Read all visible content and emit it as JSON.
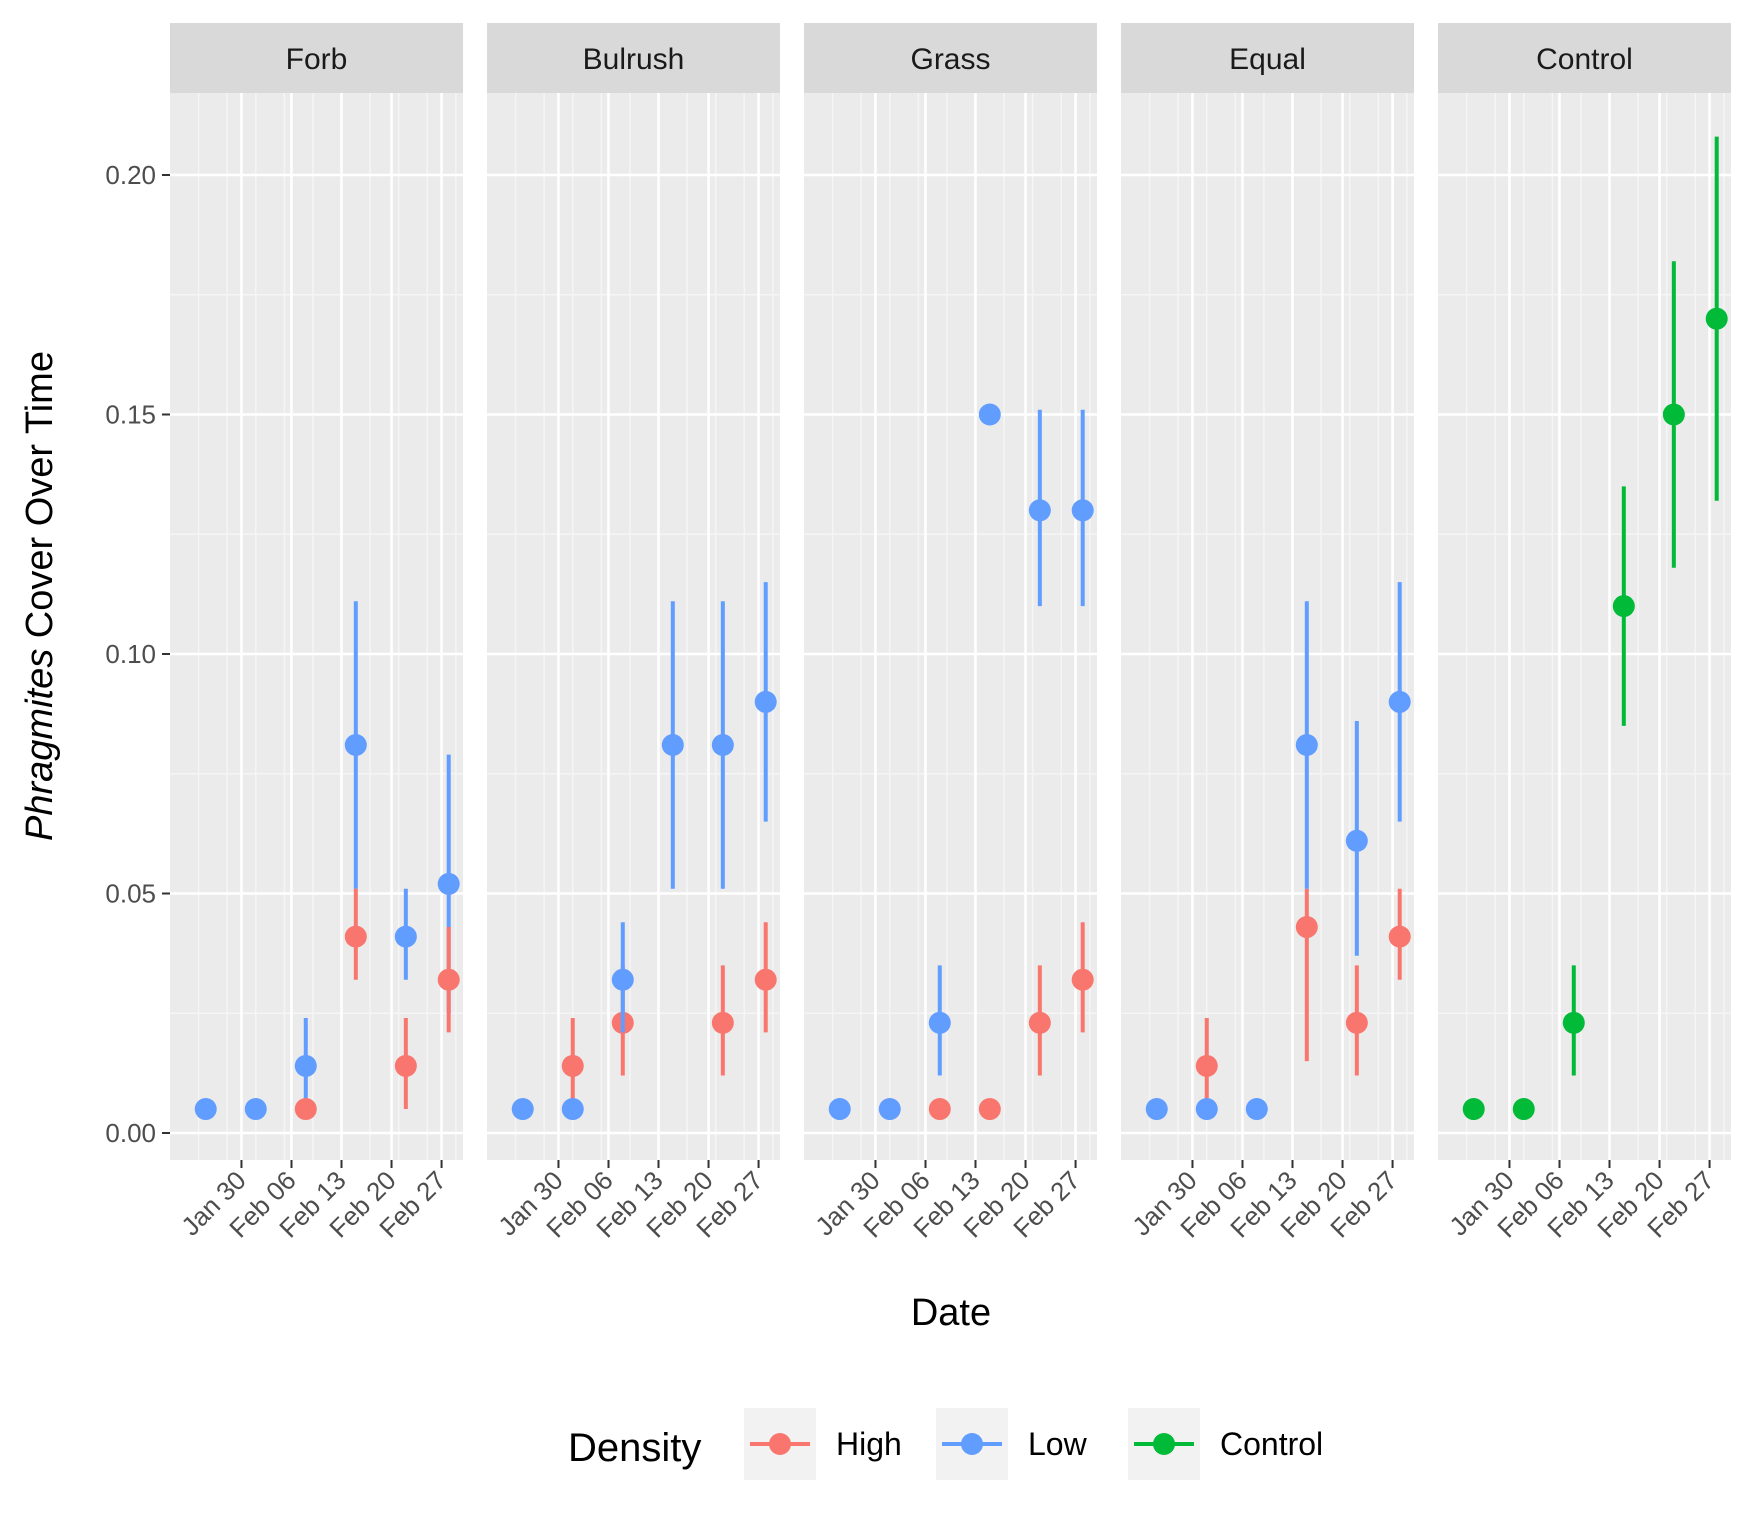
{
  "chart_data": {
    "type": "scatter",
    "subtype": "faceted point-range",
    "xlabel": "Date",
    "ylabel_italic": "Phragmites",
    "ylabel_rest": " Cover Over Time",
    "ylim": [
      -0.004,
      0.22
    ],
    "y_ticks": [
      0.0,
      0.05,
      0.1,
      0.15,
      0.2
    ],
    "y_tick_labels": [
      "0.00",
      "0.05",
      "0.10",
      "0.15",
      "0.20"
    ],
    "xlim": [
      "2023-01-20",
      "2023-03-02"
    ],
    "x_ticks": [
      "2023-01-30",
      "2023-02-06",
      "2023-02-13",
      "2023-02-20",
      "2023-02-27"
    ],
    "x_tick_labels": [
      "Jan 30",
      "Feb 06",
      "Feb 13",
      "Feb 20",
      "Feb 27"
    ],
    "grid": true,
    "legend": {
      "title": "Density",
      "position": "bottom",
      "items": [
        {
          "key": "High",
          "label": "High",
          "color": "#F8766D"
        },
        {
          "key": "Low",
          "label": "Low",
          "color": "#619CFF"
        },
        {
          "key": "Control",
          "label": "Control",
          "color": "#00BA38"
        }
      ]
    },
    "panels": [
      {
        "title": "Forb",
        "series": [
          {
            "name": "Low",
            "color": "#619CFF",
            "points": [
              {
                "x": "2023-01-25",
                "y": 0.005,
                "ymin": 0.005,
                "ymax": 0.005
              },
              {
                "x": "2023-02-01",
                "y": 0.005,
                "ymin": 0.005,
                "ymax": 0.005
              },
              {
                "x": "2023-02-08",
                "y": 0.014,
                "ymin": 0.005,
                "ymax": 0.024
              },
              {
                "x": "2023-02-15",
                "y": 0.081,
                "ymin": 0.051,
                "ymax": 0.111
              },
              {
                "x": "2023-02-22",
                "y": 0.041,
                "ymin": 0.032,
                "ymax": 0.051
              },
              {
                "x": "2023-02-28",
                "y": 0.052,
                "ymin": 0.025,
                "ymax": 0.079
              }
            ]
          },
          {
            "name": "High",
            "color": "#F8766D",
            "points": [
              {
                "x": "2023-02-08",
                "y": 0.005,
                "ymin": 0.005,
                "ymax": 0.005
              },
              {
                "x": "2023-02-15",
                "y": 0.041,
                "ymin": 0.032,
                "ymax": 0.051
              },
              {
                "x": "2023-02-22",
                "y": 0.014,
                "ymin": 0.005,
                "ymax": 0.024
              },
              {
                "x": "2023-02-28",
                "y": 0.032,
                "ymin": 0.021,
                "ymax": 0.043
              }
            ]
          }
        ]
      },
      {
        "title": "Bulrush",
        "series": [
          {
            "name": "High",
            "color": "#F8766D",
            "points": [
              {
                "x": "2023-02-01",
                "y": 0.014,
                "ymin": 0.005,
                "ymax": 0.024
              },
              {
                "x": "2023-02-08",
                "y": 0.023,
                "ymin": 0.012,
                "ymax": 0.035
              },
              {
                "x": "2023-02-22",
                "y": 0.023,
                "ymin": 0.012,
                "ymax": 0.035
              },
              {
                "x": "2023-02-28",
                "y": 0.032,
                "ymin": 0.021,
                "ymax": 0.044
              }
            ]
          },
          {
            "name": "Low",
            "color": "#619CFF",
            "points": [
              {
                "x": "2023-01-25",
                "y": 0.005,
                "ymin": 0.005,
                "ymax": 0.005
              },
              {
                "x": "2023-02-01",
                "y": 0.005,
                "ymin": 0.005,
                "ymax": 0.005
              },
              {
                "x": "2023-02-08",
                "y": 0.032,
                "ymin": 0.021,
                "ymax": 0.044
              },
              {
                "x": "2023-02-15",
                "y": 0.081,
                "ymin": 0.051,
                "ymax": 0.111
              },
              {
                "x": "2023-02-22",
                "y": 0.081,
                "ymin": 0.051,
                "ymax": 0.111
              },
              {
                "x": "2023-02-28",
                "y": 0.09,
                "ymin": 0.065,
                "ymax": 0.115
              }
            ]
          }
        ]
      },
      {
        "title": "Grass",
        "series": [
          {
            "name": "Low",
            "color": "#619CFF",
            "points": [
              {
                "x": "2023-01-25",
                "y": 0.005,
                "ymin": 0.005,
                "ymax": 0.005
              },
              {
                "x": "2023-02-01",
                "y": 0.005,
                "ymin": 0.005,
                "ymax": 0.005
              },
              {
                "x": "2023-02-08",
                "y": 0.023,
                "ymin": 0.012,
                "ymax": 0.035
              },
              {
                "x": "2023-02-15",
                "y": 0.15,
                "ymin": 0.15,
                "ymax": 0.15
              },
              {
                "x": "2023-02-22",
                "y": 0.13,
                "ymin": 0.11,
                "ymax": 0.151
              },
              {
                "x": "2023-02-28",
                "y": 0.13,
                "ymin": 0.11,
                "ymax": 0.151
              }
            ]
          },
          {
            "name": "High",
            "color": "#F8766D",
            "points": [
              {
                "x": "2023-02-08",
                "y": 0.005,
                "ymin": 0.005,
                "ymax": 0.005
              },
              {
                "x": "2023-02-15",
                "y": 0.005,
                "ymin": 0.005,
                "ymax": 0.005
              },
              {
                "x": "2023-02-22",
                "y": 0.023,
                "ymin": 0.012,
                "ymax": 0.035
              },
              {
                "x": "2023-02-28",
                "y": 0.032,
                "ymin": 0.021,
                "ymax": 0.044
              }
            ]
          }
        ]
      },
      {
        "title": "Equal",
        "series": [
          {
            "name": "High",
            "color": "#F8766D",
            "points": [
              {
                "x": "2023-02-01",
                "y": 0.014,
                "ymin": 0.005,
                "ymax": 0.024
              },
              {
                "x": "2023-02-15",
                "y": 0.043,
                "ymin": 0.015,
                "ymax": 0.051
              },
              {
                "x": "2023-02-22",
                "y": 0.023,
                "ymin": 0.012,
                "ymax": 0.035
              },
              {
                "x": "2023-02-28",
                "y": 0.041,
                "ymin": 0.032,
                "ymax": 0.051
              }
            ]
          },
          {
            "name": "Low",
            "color": "#619CFF",
            "points": [
              {
                "x": "2023-01-25",
                "y": 0.005,
                "ymin": 0.005,
                "ymax": 0.005
              },
              {
                "x": "2023-02-01",
                "y": 0.005,
                "ymin": 0.005,
                "ymax": 0.005
              },
              {
                "x": "2023-02-08",
                "y": 0.005,
                "ymin": 0.005,
                "ymax": 0.005
              },
              {
                "x": "2023-02-15",
                "y": 0.081,
                "ymin": 0.051,
                "ymax": 0.111
              },
              {
                "x": "2023-02-22",
                "y": 0.061,
                "ymin": 0.037,
                "ymax": 0.086
              },
              {
                "x": "2023-02-28",
                "y": 0.09,
                "ymin": 0.065,
                "ymax": 0.115
              }
            ]
          }
        ]
      },
      {
        "title": "Control",
        "series": [
          {
            "name": "Control",
            "color": "#00BA38",
            "points": [
              {
                "x": "2023-01-25",
                "y": 0.005,
                "ymin": 0.005,
                "ymax": 0.005
              },
              {
                "x": "2023-02-01",
                "y": 0.005,
                "ymin": 0.005,
                "ymax": 0.005
              },
              {
                "x": "2023-02-08",
                "y": 0.023,
                "ymin": 0.012,
                "ymax": 0.035
              },
              {
                "x": "2023-02-15",
                "y": 0.11,
                "ymin": 0.085,
                "ymax": 0.135
              },
              {
                "x": "2023-02-22",
                "y": 0.15,
                "ymin": 0.118,
                "ymax": 0.182
              },
              {
                "x": "2023-02-28",
                "y": 0.17,
                "ymin": 0.132,
                "ymax": 0.208
              }
            ]
          }
        ]
      }
    ]
  }
}
